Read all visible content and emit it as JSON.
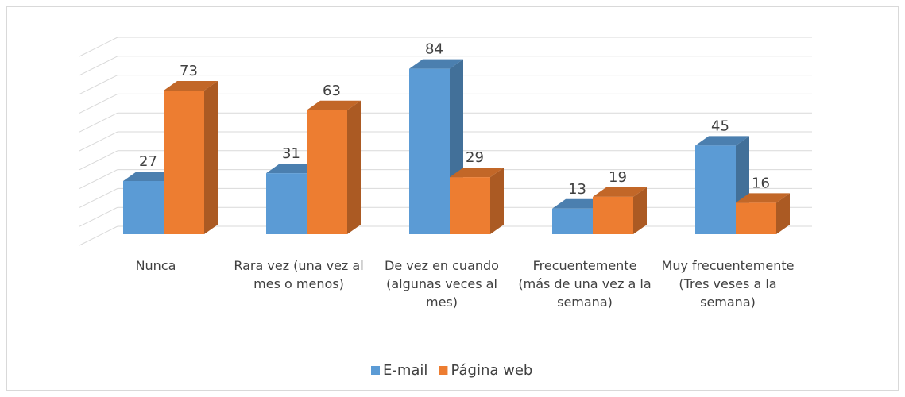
{
  "chart_data": {
    "type": "bar3d",
    "categories": [
      "Nunca",
      "Rara vez (una vez al mes o menos)",
      "De vez en cuando (algunas veces al mes)",
      "Frecuentemente (más de una vez a la semana)",
      "Muy frecuentemente (Tres veses a la semana)"
    ],
    "series": [
      {
        "name": "E-mail",
        "color": "#5b9bd5",
        "values": [
          27,
          31,
          84,
          13,
          45
        ]
      },
      {
        "name": "Página web",
        "color": "#ed7d31",
        "values": [
          73,
          63,
          29,
          19,
          16
        ]
      }
    ],
    "ylim": [
      0,
      100
    ],
    "yticks": [
      0,
      10,
      20,
      30,
      40,
      50,
      60,
      70,
      80,
      90,
      100
    ],
    "grid": true,
    "legend": "bottom"
  }
}
